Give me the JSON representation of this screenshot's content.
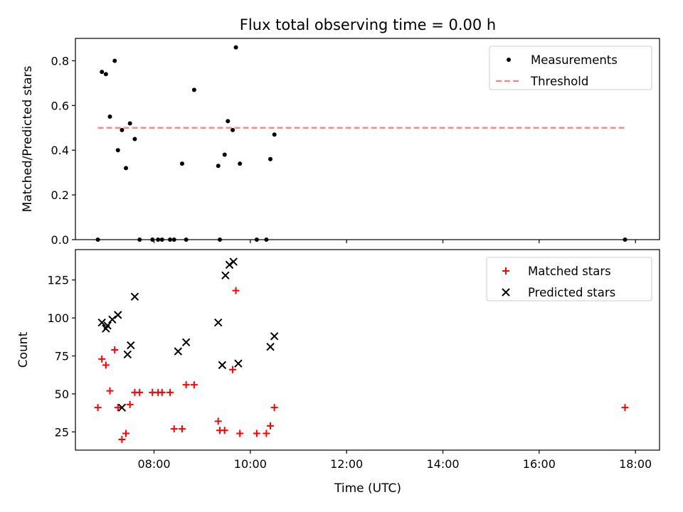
{
  "figure": {
    "title": "Flux total observing time = 0.00 h",
    "xlabel": "Time (UTC)"
  },
  "colors": {
    "measurements": "#000000",
    "threshold": "#ff7f7f",
    "matched": "#ff0000",
    "predicted": "#000000"
  },
  "chart_data": [
    {
      "type": "scatter",
      "ylabel": "Matched/Predicted stars",
      "xlim": [
        "06:22",
        "18:30"
      ],
      "ylim": [
        0,
        0.9
      ],
      "xticks": [
        "08:00",
        "10:00",
        "12:00",
        "14:00",
        "16:00",
        "18:00"
      ],
      "yticks": [
        0.0,
        0.2,
        0.4,
        0.6,
        0.8
      ],
      "ytick_labels": [
        "0.0",
        "0.2",
        "0.4",
        "0.6",
        "0.8"
      ],
      "grid": false,
      "legend_position": "top-right",
      "series": [
        {
          "name": "Measurements",
          "marker": "dot",
          "x": [
            "06:50",
            "06:55",
            "07:00",
            "07:05",
            "07:11",
            "07:15",
            "07:20",
            "07:25",
            "07:30",
            "07:36",
            "07:42",
            "07:58",
            "08:05",
            "08:10",
            "08:20",
            "08:25",
            "08:35",
            "08:40",
            "08:50",
            "09:20",
            "09:22",
            "09:28",
            "09:32",
            "09:38",
            "09:42",
            "09:47",
            "10:08",
            "10:20",
            "10:25",
            "10:30",
            "17:47"
          ],
          "y": [
            0.0,
            0.75,
            0.74,
            0.55,
            0.8,
            0.4,
            0.49,
            0.32,
            0.52,
            0.45,
            0.0,
            0.0,
            0.0,
            0.0,
            0.0,
            0.0,
            0.34,
            0.0,
            0.67,
            0.33,
            0.0,
            0.38,
            0.53,
            0.49,
            0.86,
            0.34,
            0.0,
            0.0,
            0.36,
            0.47,
            0.0
          ]
        },
        {
          "name": "Threshold",
          "marker": "dashed-line",
          "x": [
            "06:50",
            "17:47"
          ],
          "y": [
            0.5,
            0.5
          ]
        }
      ]
    },
    {
      "type": "scatter",
      "ylabel": "Count",
      "xlim": [
        "06:22",
        "18:30"
      ],
      "ylim": [
        13,
        145
      ],
      "xticks": [
        "08:00",
        "10:00",
        "12:00",
        "14:00",
        "16:00",
        "18:00"
      ],
      "yticks": [
        25,
        50,
        75,
        100,
        125
      ],
      "ytick_labels": [
        "25",
        "50",
        "75",
        "100",
        "125"
      ],
      "grid": false,
      "legend_position": "top-right",
      "series": [
        {
          "name": "Matched stars",
          "marker": "plus",
          "x": [
            "06:50",
            "06:55",
            "07:00",
            "07:05",
            "07:11",
            "07:15",
            "07:20",
            "07:25",
            "07:30",
            "07:36",
            "07:42",
            "07:58",
            "08:05",
            "08:10",
            "08:20",
            "08:25",
            "08:35",
            "08:40",
            "08:50",
            "09:20",
            "09:22",
            "09:28",
            "09:38",
            "09:42",
            "09:47",
            "10:08",
            "10:20",
            "10:25",
            "10:30",
            "17:47"
          ],
          "y": [
            41,
            73,
            69,
            52,
            79,
            41,
            20,
            24,
            43,
            51,
            51,
            51,
            51,
            51,
            51,
            27,
            27,
            56,
            56,
            32,
            26,
            26,
            66,
            118,
            24,
            24,
            24,
            29,
            41,
            41
          ]
        },
        {
          "name": "Predicted stars",
          "marker": "x",
          "x": [
            "06:55",
            "07:00",
            "07:02",
            "07:08",
            "07:15",
            "07:20",
            "07:27",
            "07:31",
            "07:36",
            "08:30",
            "08:40",
            "09:20",
            "09:25",
            "09:29",
            "09:34",
            "09:39",
            "09:45",
            "10:25",
            "10:30"
          ],
          "y": [
            97,
            93,
            95,
            99,
            102,
            41,
            76,
            82,
            114,
            78,
            84,
            97,
            69,
            128,
            135,
            137,
            70,
            81,
            88
          ]
        }
      ]
    }
  ]
}
